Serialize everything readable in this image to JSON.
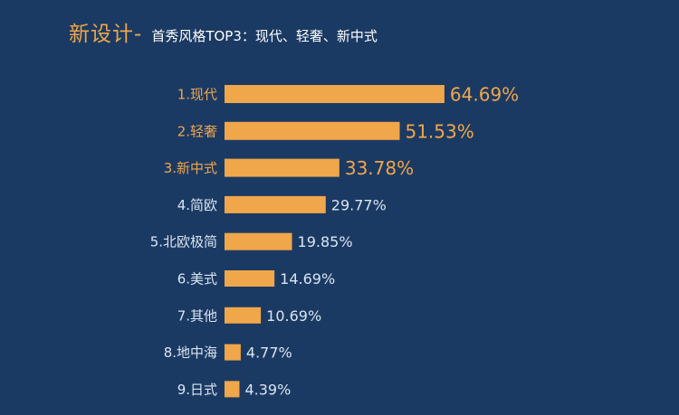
{
  "title": {
    "main": "新设计-",
    "sub": "首秀风格TOP3：现代、轻奢、新中式"
  },
  "colors": {
    "background": "#1b3a63",
    "bar": "#f0a64a",
    "highlight_text": "#f0a64a",
    "normal_text": "#d9e4f2"
  },
  "chart_data": {
    "type": "bar",
    "orientation": "horizontal",
    "categories": [
      "1.现代",
      "2.轻奢",
      "3.新中式",
      "4.简欧",
      "5.北欧极简",
      "6.美式",
      "7.其他",
      "8.地中海",
      "9.日式"
    ],
    "values": [
      64.69,
      51.53,
      33.78,
      29.77,
      19.85,
      14.69,
      10.69,
      4.77,
      4.39
    ],
    "value_labels": [
      "64.69%",
      "51.53%",
      "33.78%",
      "29.77%",
      "19.85%",
      "14.69%",
      "10.69%",
      "4.77%",
      "4.39%"
    ],
    "highlight_top": 3,
    "xlim": [
      0,
      100
    ],
    "grid": false,
    "legend": "none"
  }
}
